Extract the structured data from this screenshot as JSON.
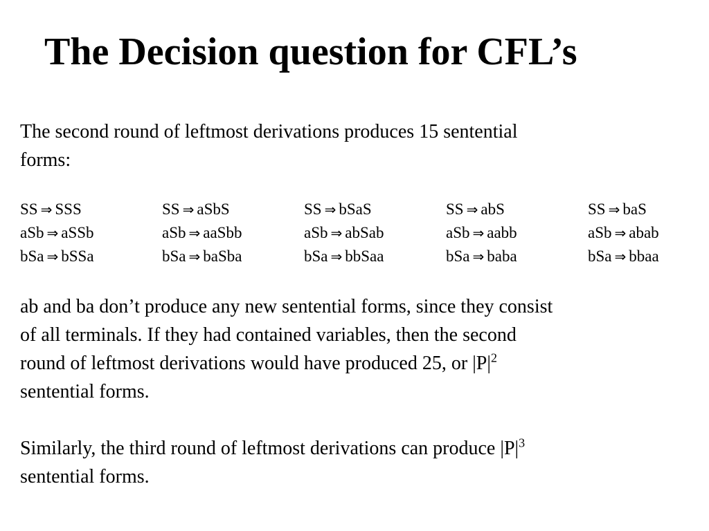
{
  "slide": {
    "title": "The Decision question for CFL’s",
    "intro": {
      "line1": "The second round of leftmost derivations produces 15 sentential",
      "line2": "forms:"
    },
    "derivation_arrow": "⇒",
    "derivations": [
      [
        {
          "lhs": "SS",
          "rhs": "SSS"
        },
        {
          "lhs": "SS",
          "rhs": "aSbS"
        },
        {
          "lhs": "SS",
          "rhs": "bSaS"
        },
        {
          "lhs": "SS",
          "rhs": "abS"
        },
        {
          "lhs": "SS",
          "rhs": "baS"
        }
      ],
      [
        {
          "lhs": "aSb",
          "rhs": "aSSb"
        },
        {
          "lhs": "aSb",
          "rhs": "aaSbb"
        },
        {
          "lhs": "aSb",
          "rhs": "abSab"
        },
        {
          "lhs": "aSb",
          "rhs": "aabb"
        },
        {
          "lhs": "aSb",
          "rhs": "abab"
        }
      ],
      [
        {
          "lhs": "bSa",
          "rhs": "bSSa"
        },
        {
          "lhs": "bSa",
          "rhs": "baSba"
        },
        {
          "lhs": "bSa",
          "rhs": "bbSaa"
        },
        {
          "lhs": "bSa",
          "rhs": "baba"
        },
        {
          "lhs": "bSa",
          "rhs": "bbaa"
        }
      ]
    ],
    "paragraph2": {
      "line1": "ab and ba don’t produce any new sentential forms, since they consist",
      "line2": "of all terminals.  If they had contained variables, then the second",
      "line3_text": "round of leftmost derivations would have produced 25, or |P|",
      "line3_sup": "2",
      "line4": "sentential forms."
    },
    "paragraph3": {
      "line1_text": "Similarly, the third round of leftmost derivations can produce |P|",
      "line1_sup": "3",
      "line2": "sentential forms."
    }
  }
}
